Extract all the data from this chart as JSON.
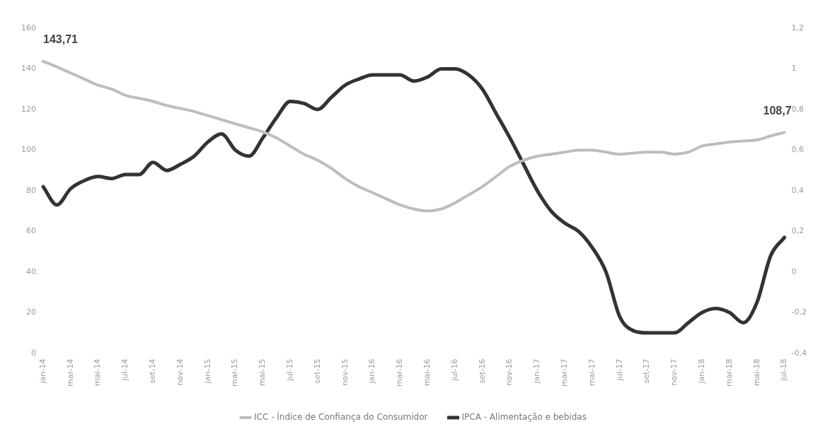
{
  "chart_data": {
    "type": "line",
    "categories": [
      "jan-14",
      null,
      "mar-14",
      null,
      "mai-14",
      null,
      "jul-14",
      null,
      "set-14",
      null,
      "nov-14",
      null,
      "jan-15",
      null,
      "mar-15",
      null,
      "mai-15",
      null,
      "jul-15",
      null,
      "set-15",
      null,
      "nov-15",
      null,
      "jan-16",
      null,
      "mar-16",
      null,
      "mai-16",
      null,
      "jul-16",
      null,
      "set-16",
      null,
      "nov-16",
      null,
      "jan-17",
      null,
      "mar-17",
      null,
      "mai-17",
      null,
      "jul-17",
      null,
      "set-17",
      null,
      "nov-17",
      null,
      "jan-18",
      null,
      "mar-18",
      null,
      "mai-18",
      null,
      "jul-18"
    ],
    "series": [
      {
        "name": "ICC - Índice de Confiança do Consumidor",
        "color": "#bdbdbd",
        "values": [
          143.71,
          141,
          138,
          135,
          132,
          130,
          127,
          125.5,
          124,
          122,
          120.5,
          119,
          117,
          115,
          113,
          111,
          109,
          106,
          102,
          98,
          95,
          91,
          86,
          82,
          79,
          76,
          73,
          71,
          70,
          71,
          74,
          78,
          82,
          87,
          92,
          95,
          97,
          98,
          99,
          100,
          100,
          99,
          98,
          98.5,
          99,
          99,
          98,
          99,
          102,
          103,
          104,
          104.5,
          105,
          107,
          108.7
        ]
      },
      {
        "name": "IPCA - Alimentação e bebidas",
        "color": "#333333",
        "axis": "y2",
        "values": [
          0.42,
          0.33,
          0.41,
          0.45,
          0.47,
          0.46,
          0.48,
          0.48,
          0.54,
          0.5,
          0.53,
          0.57,
          0.64,
          0.68,
          0.6,
          0.57,
          0.66,
          0.76,
          0.84,
          0.83,
          0.8,
          0.86,
          0.92,
          0.95,
          0.97,
          0.97,
          0.97,
          0.94,
          0.96,
          1,
          1,
          0.97,
          0.9,
          0.78,
          0.66,
          0.53,
          0.4,
          0.3,
          0.24,
          0.2,
          0.12,
          0,
          -0.22,
          -0.29,
          -0.3,
          -0.3,
          -0.3,
          -0.25,
          -0.2,
          -0.18,
          -0.2,
          -0.25,
          -0.15,
          0.08,
          0.17
        ]
      }
    ],
    "ylim": [
      0,
      160
    ],
    "yticks": [
      0,
      20,
      40,
      60,
      80,
      100,
      120,
      140,
      160
    ],
    "y2lim": [
      -0.4,
      1.2
    ],
    "y2ticks": [
      {
        "value": -0.4,
        "label": "-0,4"
      },
      {
        "value": -0.2,
        "label": "-0,2"
      },
      0,
      {
        "value": 0.2,
        "label": "0,2"
      },
      {
        "value": 0.4,
        "label": "0,4"
      },
      {
        "value": 0.6,
        "label": "0,6"
      },
      {
        "value": 0.8,
        "label": "0,8"
      },
      1,
      {
        "value": 1.2,
        "label": "1,2"
      }
    ],
    "annotations": [
      {
        "text": "143,71",
        "x": "jan-14",
        "y": 143.71
      },
      {
        "text": "108,7",
        "x": "jul-18",
        "y": 108.7
      }
    ],
    "grid": false,
    "legend": "bottom",
    "marker": "none",
    "line_style": "solid"
  }
}
